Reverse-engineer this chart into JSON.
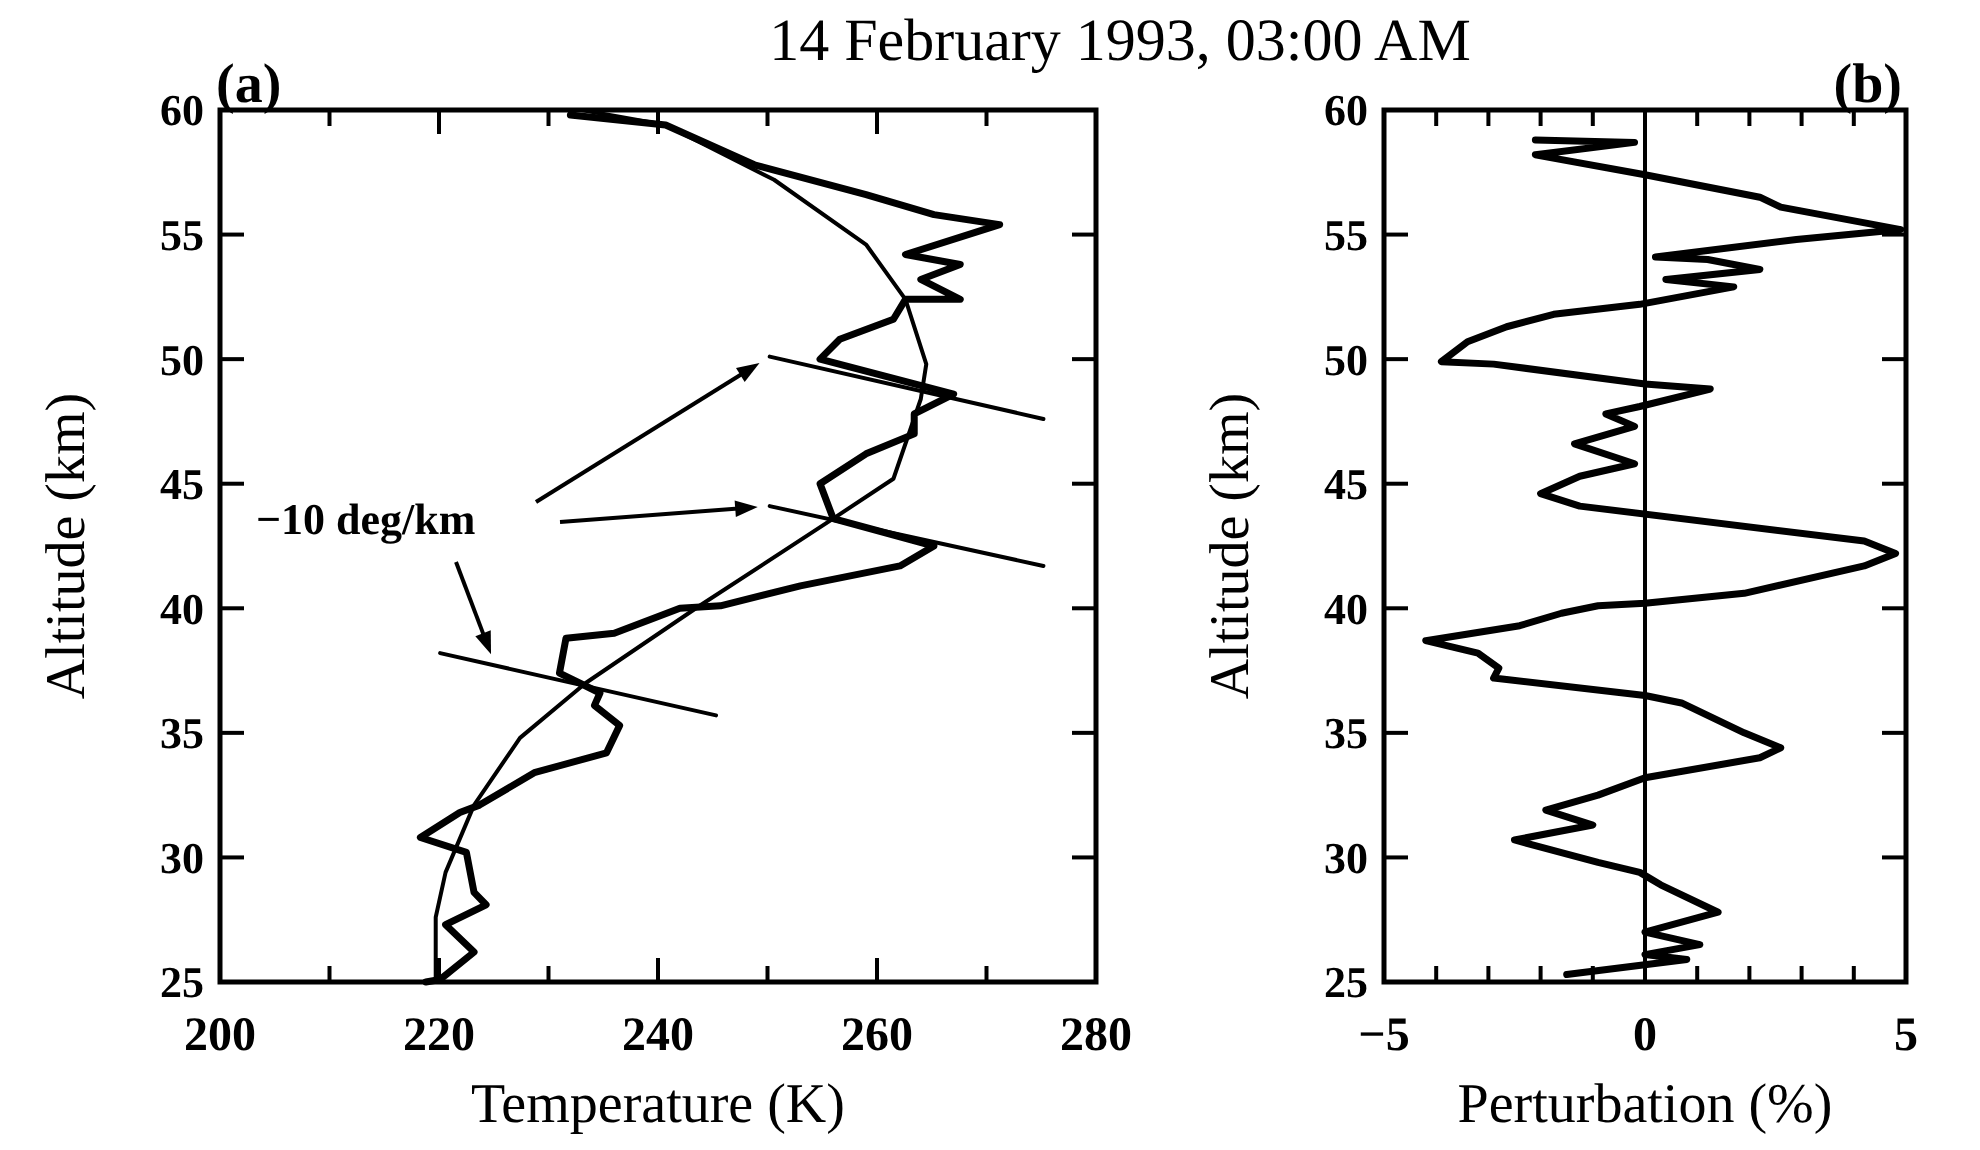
{
  "chart_data": [
    {
      "type": "line",
      "title": "14 February 1993, 03:00 AM",
      "xlabel": "Temperature (K)",
      "ylabel": "Altitude (km)",
      "annotations": [
        "(a)",
        "−10 deg/km"
      ],
      "xlim": [
        200,
        280
      ],
      "xticks": [
        200,
        {
          "value": 210,
          "label": null
        },
        220,
        {
          "value": 230,
          "label": null
        },
        240,
        {
          "value": 250,
          "label": null
        },
        260,
        {
          "value": 270,
          "label": null
        },
        280
      ],
      "ylim": [
        25,
        60
      ],
      "yticks": [
        25,
        30,
        35,
        40,
        45,
        50,
        55,
        60
      ],
      "grid": false,
      "series": [
        {
          "color": "#000000",
          "x": [
            232,
            240.7,
            248.8,
            259,
            265.2,
            271.2,
            262.6,
            267.6,
            264,
            267.6,
            262.6,
            261.5,
            256.6,
            254.8,
            267,
            263.4,
            263.4,
            259,
            254.8,
            256,
            265.2,
            262.1,
            253,
            245.7,
            242,
            236,
            231.6,
            231,
            234.7,
            234.2,
            236.5,
            235.3,
            228.7,
            223.7,
            221.9,
            218.3,
            222.5,
            223.2,
            224.3,
            220.6,
            223.2,
            220.1,
            218.8
          ],
          "values": [
            59.8,
            59.4,
            57.8,
            56.6,
            55.8,
            55.4,
            54.2,
            53.8,
            53.2,
            52.4,
            52.4,
            51.6,
            50.8,
            50,
            48.6,
            47.8,
            47,
            46.2,
            45,
            43.6,
            42.5,
            41.7,
            40.9,
            40.1,
            40,
            39,
            38.8,
            37.4,
            36.6,
            36.1,
            35.3,
            34.2,
            33.4,
            32.1,
            31.8,
            30.8,
            30.2,
            28.6,
            28.1,
            27.3,
            26.2,
            25.1,
            25
          ]
        },
        {
          "color": "#000000",
          "x": [
            233,
            240.7,
            250.6,
            259,
            262.6,
            264.5,
            264,
            261.5,
            256,
            243.8,
            233.4,
            227.4,
            223.2,
            220.6,
            219.7,
            219.7
          ],
          "values": [
            60,
            59.4,
            57.2,
            54.6,
            52.4,
            49.8,
            48.4,
            45.2,
            43.6,
            40.1,
            37,
            34.8,
            32.1,
            29.4,
            27.6,
            25
          ]
        },
        {
          "color": "#000000",
          "x": [
            250.2,
            275.2
          ],
          "values": [
            50.1,
            47.6
          ]
        },
        {
          "color": "#000000",
          "x": [
            250.2,
            275.2
          ],
          "values": [
            44.1,
            41.7
          ]
        },
        {
          "color": "#000000",
          "x": [
            220.1,
            245.3
          ],
          "values": [
            38.2,
            35.7
          ]
        }
      ]
    },
    {
      "type": "line",
      "xlabel": "Perturbation (%)",
      "ylabel": "Altitude (km)",
      "annotations": [
        "(b)"
      ],
      "xlim": [
        -5,
        5
      ],
      "xticks": [
        {
          "value": -5,
          "label": "−5"
        },
        {
          "value": -4,
          "label": null
        },
        {
          "value": -3,
          "label": null
        },
        {
          "value": -2,
          "label": null
        },
        {
          "value": -1,
          "label": null
        },
        0,
        {
          "value": 1,
          "label": null
        },
        {
          "value": 2,
          "label": null
        },
        {
          "value": 3,
          "label": null
        },
        {
          "value": 4,
          "label": null
        },
        5
      ],
      "ylim": [
        25,
        60
      ],
      "yticks": [
        25,
        30,
        35,
        40,
        45,
        50,
        55,
        60
      ],
      "grid": false,
      "ref_lines": [
        {
          "axis": "x",
          "value": 0
        }
      ],
      "series": [
        {
          "color": "#000000",
          "x": [
            -2.1,
            -0.2,
            -2.1,
            0,
            2.2,
            2.6,
            4.9,
            2.9,
            0.2,
            1.2,
            2.2,
            0.4,
            1.7,
            -0.1,
            -1.75,
            -2.65,
            -3.4,
            -3.9,
            -2.9,
            0,
            1.25,
            -0.1,
            -0.75,
            -0.2,
            -1.35,
            -0.2,
            -1.25,
            -2,
            -1.25,
            4.2,
            4.8,
            4.2,
            1.9,
            0,
            -0.9,
            -1.6,
            -2.4,
            -4.2,
            -3.2,
            -2.8,
            -2.9,
            0,
            0.7,
            1.9,
            2.6,
            2.2,
            0,
            -0.9,
            -1.9,
            -1,
            -2.5,
            -0.9,
            -0.1,
            0.3,
            1.4,
            0,
            1.05,
            0,
            0.8,
            -1.5
          ],
          "values": [
            58.8,
            58.7,
            58.2,
            57.4,
            56.5,
            56.1,
            55.2,
            54.8,
            54.1,
            54,
            53.6,
            53.2,
            52.9,
            52.2,
            51.8,
            51.3,
            50.7,
            49.9,
            49.8,
            49,
            48.8,
            48.1,
            47.8,
            47.3,
            46.6,
            45.8,
            45.3,
            44.6,
            44.1,
            42.7,
            42.2,
            41.7,
            40.6,
            40.2,
            40.1,
            39.8,
            39.3,
            38.7,
            38.2,
            37.6,
            37.2,
            36.5,
            36.2,
            35,
            34.4,
            34,
            33.2,
            32.5,
            31.9,
            31.3,
            30.7,
            29.8,
            29.4,
            28.9,
            27.8,
            27,
            26.5,
            26.1,
            25.9,
            25.3
          ]
        }
      ]
    }
  ]
}
